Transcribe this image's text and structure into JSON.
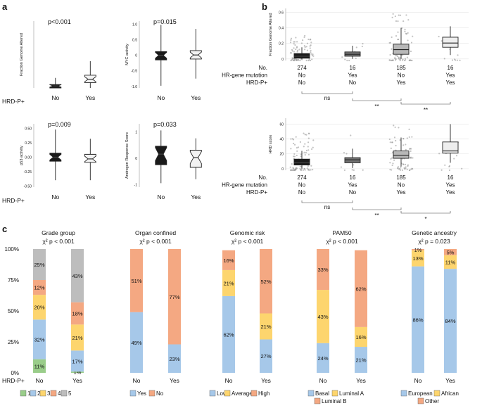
{
  "panel_labels": [
    "a",
    "b",
    "c"
  ],
  "chart_data": [
    {
      "id": "a1",
      "type": "boxplot",
      "ylabel": "Fraction Genome Altered",
      "pvalue": "p<0.001",
      "categories": [
        "No",
        "Yes"
      ],
      "yticks": [],
      "ylim": [
        0,
        1
      ],
      "boxes": [
        {
          "min": 0.0,
          "q1": 0.0,
          "median": 0.03,
          "q3": 0.05,
          "max": 0.15,
          "color": "#1a1a1a"
        },
        {
          "min": 0.0,
          "q1": 0.08,
          "median": 0.13,
          "q3": 0.19,
          "max": 0.4,
          "color": "#f2f2f2"
        }
      ]
    },
    {
      "id": "a2",
      "type": "boxplot",
      "ylabel": "MYC activity",
      "pvalue": "p=0.015",
      "categories": [
        "No",
        "Yes"
      ],
      "yticks": [
        "1.0",
        "0.5",
        "0",
        "-0.5",
        "-1.0"
      ],
      "ylim": [
        -1.05,
        1.1
      ],
      "boxes": [
        {
          "min": -0.98,
          "q1": -0.15,
          "median": 0.0,
          "q3": 0.12,
          "max": 0.98,
          "color": "#1a1a1a"
        },
        {
          "min": -0.75,
          "q1": -0.12,
          "median": 0.01,
          "q3": 0.15,
          "max": 0.85,
          "color": "#f2f2f2"
        }
      ]
    },
    {
      "id": "a3",
      "type": "boxplot",
      "ylabel": "p53 activity",
      "pvalue": "p=0.009",
      "categories": [
        "No",
        "Yes"
      ],
      "yticks": [
        "0.50",
        "0.25",
        "0.00",
        "-0.25",
        "-0.50"
      ],
      "ylim": [
        -0.52,
        0.58
      ],
      "boxes": [
        {
          "min": -0.4,
          "q1": -0.07,
          "median": 0.0,
          "q3": 0.07,
          "max": 0.48,
          "color": "#1a1a1a"
        },
        {
          "min": -0.4,
          "q1": -0.09,
          "median": -0.03,
          "q3": 0.05,
          "max": 0.32,
          "color": "#f2f2f2"
        }
      ]
    },
    {
      "id": "a4",
      "type": "boxplot",
      "ylabel": "Androgen Response Score",
      "pvalue": "p=0.033",
      "categories": [
        "No",
        "Yes"
      ],
      "yticks": [
        "1",
        "0",
        "-1"
      ],
      "ylim": [
        -1.1,
        1.3
      ],
      "boxes": [
        {
          "min": -0.95,
          "q1": -0.25,
          "median": 0.15,
          "q3": 0.45,
          "max": 1.05,
          "color": "#1a1a1a"
        },
        {
          "min": -0.8,
          "q1": -0.35,
          "median": 0.02,
          "q3": 0.3,
          "max": 0.75,
          "color": "#f2f2f2"
        }
      ]
    },
    {
      "id": "b1",
      "type": "boxplot",
      "ylabel": "Fraction Genome Altered",
      "yticks": [
        "0.6",
        "0.4",
        "0.2",
        "0"
      ],
      "ylim": [
        -0.02,
        0.65
      ],
      "n": [
        "274",
        "16",
        "185",
        "16"
      ],
      "boxes": [
        {
          "min": 0.0,
          "q1": 0.01,
          "median": 0.035,
          "q3": 0.07,
          "max": 0.15,
          "color": "#1a1a1a",
          "jitter_max": 0.3,
          "points": 80
        },
        {
          "min": 0.0,
          "q1": 0.035,
          "median": 0.06,
          "q3": 0.09,
          "max": 0.17,
          "color": "#737373",
          "jitter_max": 0.2,
          "points": 12
        },
        {
          "min": 0.0,
          "q1": 0.06,
          "median": 0.12,
          "q3": 0.19,
          "max": 0.4,
          "color": "#b8b8b8",
          "jitter_max": 0.6,
          "points": 70
        },
        {
          "min": 0.05,
          "q1": 0.15,
          "median": 0.205,
          "q3": 0.28,
          "max": 0.42,
          "color": "#eeeeee",
          "jitter_max": 0.55,
          "points": 12
        }
      ]
    },
    {
      "id": "b2",
      "type": "boxplot",
      "ylabel": "HRD score",
      "yticks": [
        "60",
        "40",
        "20",
        "0"
      ],
      "ylim": [
        -2,
        68
      ],
      "n": [
        "274",
        "16",
        "185",
        "16"
      ],
      "boxes": [
        {
          "min": 0,
          "q1": 5,
          "median": 8,
          "q3": 13,
          "max": 24,
          "color": "#1a1a1a",
          "jitter_max": 48,
          "points": 80
        },
        {
          "min": 1,
          "q1": 8,
          "median": 12,
          "q3": 15,
          "max": 27,
          "color": "#737373",
          "jitter_max": 48,
          "points": 12
        },
        {
          "min": 3,
          "q1": 14,
          "median": 18,
          "q3": 24,
          "max": 42,
          "color": "#b8b8b8",
          "jitter_max": 60,
          "points": 70
        },
        {
          "min": 8,
          "q1": 21,
          "median": 24,
          "q3": 36,
          "max": 60,
          "color": "#eeeeee",
          "jitter_max": 60,
          "points": 12
        }
      ]
    },
    {
      "id": "c",
      "type": "stacked_bar",
      "ylim": [
        0,
        100
      ],
      "yticks": [
        "100%",
        "75%",
        "50%",
        "25%",
        "0%"
      ],
      "x_row_label": "HRD-P+",
      "groups": [
        {
          "title": "Grade group",
          "stat": "χ² p < 0.001",
          "bars": [
            {
              "label": "No",
              "segments": [
                {
                  "name": "1",
                  "value": 11,
                  "label": "11%",
                  "color": "#9acd8a"
                },
                {
                  "name": "2",
                  "value": 32,
                  "label": "32%",
                  "color": "#a6c8e9"
                },
                {
                  "name": "3",
                  "value": 20,
                  "label": "20%",
                  "color": "#fdd56e"
                },
                {
                  "name": "4",
                  "value": 12,
                  "label": "12%",
                  "color": "#f4a882"
                },
                {
                  "name": "5",
                  "value": 25,
                  "label": "25%",
                  "color": "#bdbdbd"
                }
              ]
            },
            {
              "label": "Yes",
              "segments": [
                {
                  "name": "1",
                  "value": 1,
                  "label": "1%",
                  "color": "#9acd8a"
                },
                {
                  "name": "2",
                  "value": 17,
                  "label": "17%",
                  "color": "#a6c8e9"
                },
                {
                  "name": "3",
                  "value": 21,
                  "label": "21%",
                  "color": "#fdd56e"
                },
                {
                  "name": "4",
                  "value": 18,
                  "label": "18%",
                  "color": "#f4a882"
                },
                {
                  "name": "5",
                  "value": 43,
                  "label": "43%",
                  "color": "#bdbdbd"
                }
              ]
            }
          ],
          "legend": [
            {
              "label": "1",
              "color": "#9acd8a"
            },
            {
              "label": "2",
              "color": "#a6c8e9"
            },
            {
              "label": "3",
              "color": "#fdd56e"
            },
            {
              "label": "4",
              "color": "#f4a882"
            },
            {
              "label": "5",
              "color": "#bdbdbd"
            }
          ]
        },
        {
          "title": "Organ confined",
          "stat": "χ² p < 0.001",
          "bars": [
            {
              "label": "No",
              "segments": [
                {
                  "name": "Yes",
                  "value": 49,
                  "label": "49%",
                  "color": "#a6c8e9"
                },
                {
                  "name": "No",
                  "value": 51,
                  "label": "51%",
                  "color": "#f4a882"
                }
              ]
            },
            {
              "label": "Yes",
              "segments": [
                {
                  "name": "Yes",
                  "value": 23,
                  "label": "23%",
                  "color": "#a6c8e9"
                },
                {
                  "name": "No",
                  "value": 77,
                  "label": "77%",
                  "color": "#f4a882"
                }
              ]
            }
          ],
          "legend": [
            {
              "label": "Yes",
              "color": "#a6c8e9"
            },
            {
              "label": "No",
              "color": "#f4a882"
            }
          ]
        },
        {
          "title": "Genomic risk",
          "stat": "χ² p < 0.001",
          "bars": [
            {
              "label": "No",
              "segments": [
                {
                  "name": "Low",
                  "value": 62,
                  "label": "62%",
                  "color": "#a6c8e9"
                },
                {
                  "name": "Average",
                  "value": 21,
                  "label": "21%",
                  "color": "#fdd56e"
                },
                {
                  "name": "High",
                  "value": 16,
                  "label": "16%",
                  "color": "#f4a882"
                }
              ]
            },
            {
              "label": "Yes",
              "segments": [
                {
                  "name": "Low",
                  "value": 27,
                  "label": "27%",
                  "color": "#a6c8e9"
                },
                {
                  "name": "Average",
                  "value": 21,
                  "label": "21%",
                  "color": "#fdd56e"
                },
                {
                  "name": "High",
                  "value": 52,
                  "label": "52%",
                  "color": "#f4a882"
                }
              ]
            }
          ],
          "legend": [
            {
              "label": "Low",
              "color": "#a6c8e9"
            },
            {
              "label": "Average",
              "color": "#fdd56e"
            },
            {
              "label": "High",
              "color": "#f4a882"
            }
          ]
        },
        {
          "title": "PAM50",
          "stat": "χ² p < 0.001",
          "bars": [
            {
              "label": "No",
              "segments": [
                {
                  "name": "Basal",
                  "value": 24,
                  "label": "24%",
                  "color": "#a6c8e9"
                },
                {
                  "name": "Luminal A",
                  "value": 43,
                  "label": "43%",
                  "color": "#fdd56e"
                },
                {
                  "name": "Luminal B",
                  "value": 33,
                  "label": "33%",
                  "color": "#f4a882"
                }
              ]
            },
            {
              "label": "Yes",
              "segments": [
                {
                  "name": "Basal",
                  "value": 21,
                  "label": "21%",
                  "color": "#a6c8e9"
                },
                {
                  "name": "Luminal A",
                  "value": 16,
                  "label": "16%",
                  "color": "#fdd56e"
                },
                {
                  "name": "Luminal B",
                  "value": 62,
                  "label": "62%",
                  "color": "#f4a882"
                }
              ]
            }
          ],
          "legend": [
            {
              "label": "Basal",
              "color": "#a6c8e9"
            },
            {
              "label": "Luminal A",
              "color": "#fdd56e"
            },
            {
              "label": "Luminal B",
              "color": "#f4a882"
            }
          ]
        },
        {
          "title": "Genetic ancestry",
          "stat": "χ² p = 0.023",
          "bars": [
            {
              "label": "No",
              "segments": [
                {
                  "name": "European",
                  "value": 86,
                  "label": "86%",
                  "color": "#a6c8e9"
                },
                {
                  "name": "African",
                  "value": 13,
                  "label": "13%",
                  "color": "#fdd56e"
                },
                {
                  "name": "Other",
                  "value": 1,
                  "label": "1%",
                  "color": "#f4a882"
                }
              ]
            },
            {
              "label": "Yes",
              "segments": [
                {
                  "name": "European",
                  "value": 84,
                  "label": "84%",
                  "color": "#a6c8e9"
                },
                {
                  "name": "African",
                  "value": 11,
                  "label": "11%",
                  "color": "#fdd56e"
                },
                {
                  "name": "Other",
                  "value": 5,
                  "label": "5%",
                  "color": "#f4a882"
                }
              ]
            }
          ],
          "legend": [
            {
              "label": "European",
              "color": "#a6c8e9"
            },
            {
              "label": "African",
              "color": "#fdd56e"
            },
            {
              "label": "Other",
              "color": "#f4a882"
            }
          ]
        }
      ]
    }
  ],
  "panel_a_row_label": "HRD-P+",
  "panel_b_rows": {
    "row_labels": [
      "No.",
      "HR-gene mutation",
      "HRD-P+"
    ],
    "hr_gene_mutation": [
      "No",
      "Yes",
      "No",
      "Yes"
    ],
    "hrd_p": [
      "No",
      "No",
      "Yes",
      "Yes"
    ]
  },
  "panel_b_comparisons": [
    {
      "plot": "b1",
      "labels": [
        "ns",
        "**",
        "**"
      ]
    },
    {
      "plot": "b2",
      "labels": [
        "ns",
        "**",
        "*"
      ]
    }
  ]
}
